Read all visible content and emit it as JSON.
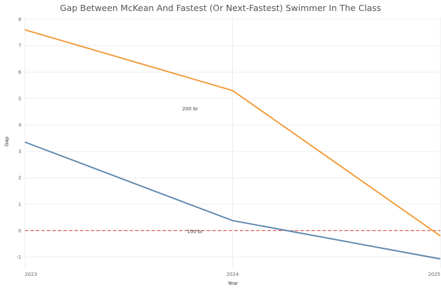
{
  "chart_data": {
    "type": "line",
    "title": "Gap Between McKean And Fastest (Or Next-Fastest) Swimmer In The Class",
    "xlabel": "Year",
    "ylabel": "Gap",
    "x": [
      "2023",
      "2024",
      "2025"
    ],
    "ylim": [
      -1.4,
      8.1
    ],
    "yticks": [
      -1,
      0,
      1,
      2,
      3,
      4,
      5,
      6,
      7,
      8
    ],
    "grid": true,
    "reference_line": {
      "y": 0,
      "color": "#e05c5c",
      "style": "dashed"
    },
    "series": [
      {
        "name": "200 br",
        "color": "#f29b3a",
        "values": [
          7.6,
          5.3,
          -0.2
        ]
      },
      {
        "name": "100 br",
        "color": "#5f88ad",
        "values": [
          3.35,
          0.38,
          -1.07
        ]
      }
    ]
  }
}
